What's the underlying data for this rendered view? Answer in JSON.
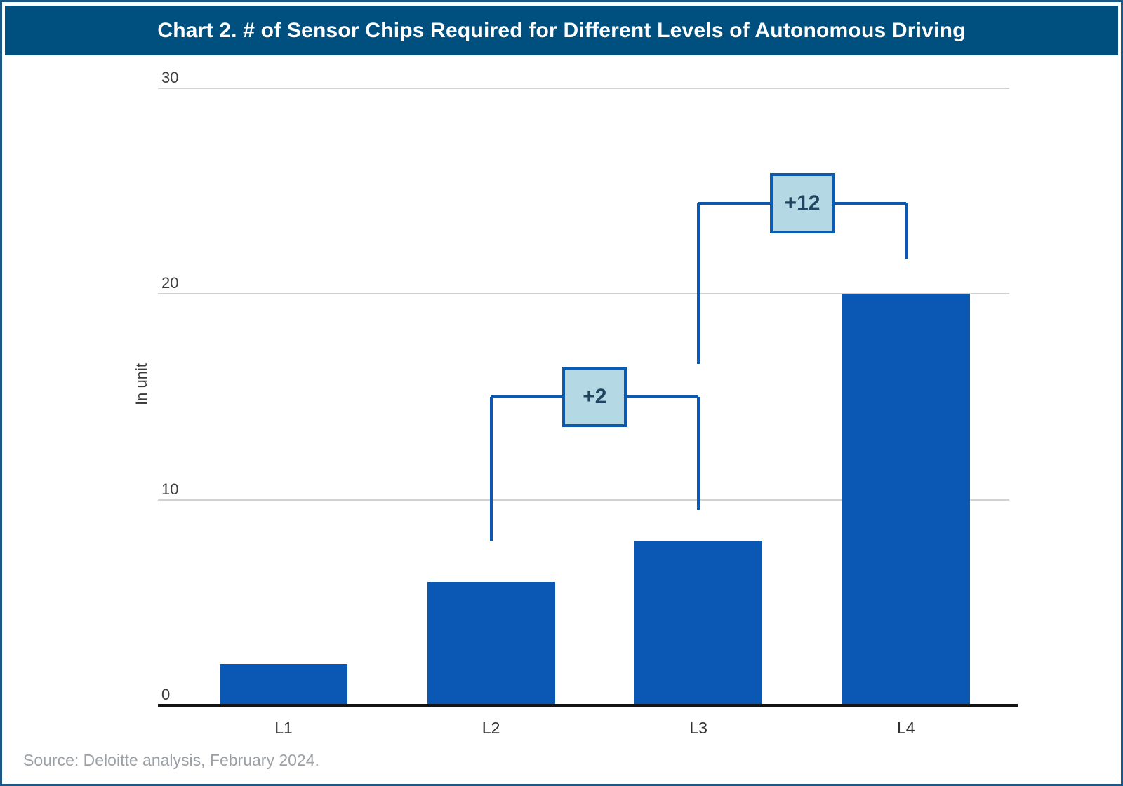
{
  "header": {
    "title": "Chart 2. # of Sensor Chips Required for Different Levels of Autonomous Driving"
  },
  "footer": {
    "source": "Source: Deloitte analysis, February 2024."
  },
  "colors": {
    "header_bg": "#00507f",
    "header_text": "#ffffff",
    "page_border": "#1b5885",
    "bar": "#0a58b4",
    "connector": "#0d59b0",
    "annotation_fill": "#b5d9e4",
    "annotation_border": "#0c5ab2",
    "annotation_text": "#1f4560",
    "gridline": "#d2d2d2",
    "axis_line": "#141414",
    "tick_text": "#3e3e3e",
    "category_text": "#303030",
    "source_text": "#9ba0a5"
  },
  "chart_data": {
    "type": "bar",
    "title": "Chart 2. # of Sensor Chips Required for Different Levels of Autonomous Driving",
    "categories": [
      "L1",
      "L2",
      "L3",
      "L4"
    ],
    "values": [
      2,
      6,
      8,
      20
    ],
    "xlabel": "",
    "ylabel": "In unit",
    "ylim": [
      0,
      30
    ],
    "yticks": [
      0,
      10,
      20,
      30
    ],
    "grid": "horizontal",
    "legend": "none",
    "bar_color": "#0a58b4",
    "annotations": [
      {
        "label": "+2",
        "delta": 2,
        "from": "L2",
        "to": "L3",
        "line_value": 15,
        "left_drop_end_value": 8,
        "right_drop_end_value": 9.5
      },
      {
        "label": "+12",
        "delta": 12,
        "from": "L3",
        "to": "L4",
        "line_value": 24.4,
        "left_drop_end_value": 16.6,
        "right_drop_end_value": 21.7
      }
    ]
  }
}
